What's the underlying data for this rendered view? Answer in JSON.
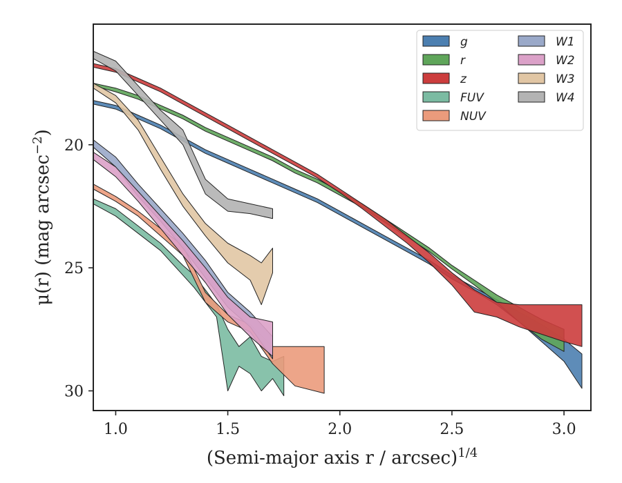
{
  "chart_data": {
    "type": "area",
    "xlabel": "(Semi-major axis r / arcsec)",
    "xlabel_exponent": "1/4",
    "ylabel": "μ(r) (mag arcsec",
    "ylabel_exponent": "−2",
    "ylabel_close": ")",
    "xlim": [
      0.9,
      3.12
    ],
    "ylim": [
      30.8,
      15.1
    ],
    "y_inverted": true,
    "xticks": [
      1.0,
      1.5,
      2.0,
      2.5,
      3.0
    ],
    "xtick_labels": [
      "1.0",
      "1.5",
      "2.0",
      "2.5",
      "3.0"
    ],
    "yticks": [
      20,
      25,
      30
    ],
    "ytick_labels": [
      "20",
      "25",
      "30"
    ],
    "grid": false,
    "legend": {
      "position": "top-right",
      "columns": 2
    },
    "series": [
      {
        "name": "g",
        "color": "#4c7fb0",
        "x": [
          0.9,
          1.0,
          1.1,
          1.2,
          1.3,
          1.4,
          1.5,
          1.6,
          1.7,
          1.8,
          1.9,
          2.0,
          2.1,
          2.2,
          2.3,
          2.4,
          2.5,
          2.6,
          2.7,
          2.8,
          2.9,
          3.0,
          3.08
        ],
        "lo": [
          18.2,
          18.4,
          18.8,
          19.2,
          19.7,
          20.2,
          20.6,
          21.0,
          21.4,
          21.8,
          22.2,
          22.7,
          23.2,
          23.7,
          24.2,
          24.7,
          25.3,
          25.8,
          26.3,
          26.8,
          27.3,
          27.9,
          28.5
        ],
        "hi": [
          18.35,
          18.55,
          18.95,
          19.35,
          19.85,
          20.35,
          20.75,
          21.15,
          21.55,
          21.95,
          22.35,
          22.85,
          23.35,
          23.85,
          24.35,
          24.85,
          25.45,
          25.95,
          26.5,
          27.2,
          28.0,
          28.8,
          29.9
        ]
      },
      {
        "name": "r",
        "color": "#5fa55a",
        "x": [
          0.9,
          1.0,
          1.1,
          1.2,
          1.3,
          1.4,
          1.5,
          1.6,
          1.7,
          1.8,
          1.9,
          2.0,
          2.1,
          2.2,
          2.3,
          2.4,
          2.5,
          2.6,
          2.7,
          2.8,
          2.9,
          3.0
        ],
        "lo": [
          17.5,
          17.7,
          18.0,
          18.4,
          18.8,
          19.3,
          19.7,
          20.1,
          20.5,
          21.0,
          21.4,
          21.9,
          22.4,
          23.0,
          23.6,
          24.2,
          24.9,
          25.5,
          26.1,
          26.6,
          27.1,
          27.5
        ],
        "hi": [
          17.6,
          17.85,
          18.15,
          18.55,
          18.95,
          19.45,
          19.85,
          20.25,
          20.65,
          21.15,
          21.55,
          22.05,
          22.55,
          23.15,
          23.75,
          24.35,
          25.05,
          25.7,
          26.4,
          27.2,
          27.9,
          28.4
        ]
      },
      {
        "name": "z",
        "color": "#cc3d3d",
        "x": [
          0.9,
          1.0,
          1.1,
          1.2,
          1.3,
          1.4,
          1.5,
          1.6,
          1.7,
          1.8,
          1.9,
          2.0,
          2.1,
          2.2,
          2.3,
          2.4,
          2.5,
          2.6,
          2.7,
          2.8,
          2.9,
          3.0,
          3.08
        ],
        "lo": [
          16.7,
          16.9,
          17.3,
          17.7,
          18.2,
          18.7,
          19.2,
          19.7,
          20.2,
          20.7,
          21.2,
          21.8,
          22.4,
          23.0,
          23.7,
          24.4,
          25.2,
          25.9,
          26.4,
          26.5,
          26.5,
          26.5,
          26.5
        ],
        "hi": [
          16.85,
          17.05,
          17.45,
          17.85,
          18.35,
          18.85,
          19.35,
          19.85,
          20.35,
          20.85,
          21.35,
          21.95,
          22.6,
          23.3,
          24.0,
          24.8,
          25.7,
          26.8,
          27.0,
          27.4,
          27.7,
          28.0,
          28.2
        ]
      },
      {
        "name": "FUV",
        "color": "#7bbba2",
        "x": [
          0.9,
          1.0,
          1.1,
          1.2,
          1.3,
          1.35,
          1.4,
          1.45,
          1.5,
          1.55,
          1.6,
          1.65,
          1.7,
          1.75
        ],
        "lo": [
          22.2,
          22.6,
          23.3,
          24.0,
          24.9,
          25.3,
          25.9,
          26.5,
          27.5,
          28.2,
          27.8,
          28.6,
          28.8,
          28.6
        ],
        "hi": [
          22.4,
          22.9,
          23.6,
          24.3,
          25.3,
          25.8,
          26.4,
          27.0,
          30.0,
          29.0,
          29.3,
          30.0,
          29.5,
          30.2
        ]
      },
      {
        "name": "NUV",
        "color": "#eb9b7c",
        "x": [
          0.9,
          1.0,
          1.1,
          1.2,
          1.3,
          1.4,
          1.5,
          1.6,
          1.7,
          1.8,
          1.93
        ],
        "lo": [
          21.6,
          22.1,
          22.7,
          23.4,
          24.1,
          26.0,
          26.9,
          27.3,
          28.2,
          28.2,
          28.2
        ],
        "hi": [
          21.8,
          22.3,
          22.9,
          23.7,
          24.5,
          26.4,
          27.2,
          27.6,
          28.9,
          29.8,
          30.1
        ]
      },
      {
        "name": "W1",
        "color": "#9aa9c9",
        "x": [
          0.9,
          1.0,
          1.1,
          1.2,
          1.3,
          1.4,
          1.5,
          1.6,
          1.7
        ],
        "lo": [
          19.8,
          20.5,
          21.6,
          22.6,
          23.6,
          24.7,
          26.0,
          26.8,
          27.8
        ],
        "hi": [
          20.1,
          20.9,
          22.1,
          23.1,
          24.2,
          25.4,
          26.6,
          27.4,
          28.7
        ]
      },
      {
        "name": "W2",
        "color": "#dba1c8",
        "x": [
          0.9,
          1.0,
          1.1,
          1.2,
          1.3,
          1.4,
          1.5,
          1.6,
          1.7
        ],
        "lo": [
          20.3,
          20.9,
          21.9,
          22.9,
          23.9,
          25.0,
          26.2,
          27.0,
          27.2
        ],
        "hi": [
          20.6,
          21.3,
          22.3,
          23.4,
          24.5,
          25.6,
          26.9,
          27.8,
          28.6
        ]
      },
      {
        "name": "W3",
        "color": "#e1c6a4",
        "x": [
          0.9,
          1.0,
          1.1,
          1.2,
          1.3,
          1.4,
          1.5,
          1.6,
          1.65,
          1.7
        ],
        "lo": [
          17.5,
          18.0,
          19.0,
          20.5,
          22.0,
          23.2,
          24.0,
          24.5,
          24.8,
          24.2
        ],
        "hi": [
          17.7,
          18.3,
          19.4,
          21.0,
          22.5,
          23.7,
          24.8,
          25.5,
          26.5,
          25.2
        ]
      },
      {
        "name": "W4",
        "color": "#b3b3b3",
        "x": [
          0.9,
          1.0,
          1.1,
          1.2,
          1.3,
          1.4,
          1.5,
          1.6,
          1.7
        ],
        "lo": [
          16.2,
          16.6,
          17.6,
          18.6,
          19.4,
          21.4,
          22.2,
          22.4,
          22.6
        ],
        "hi": [
          16.5,
          17.0,
          18.0,
          19.0,
          20.0,
          22.0,
          22.7,
          22.8,
          23.0
        ]
      }
    ]
  }
}
